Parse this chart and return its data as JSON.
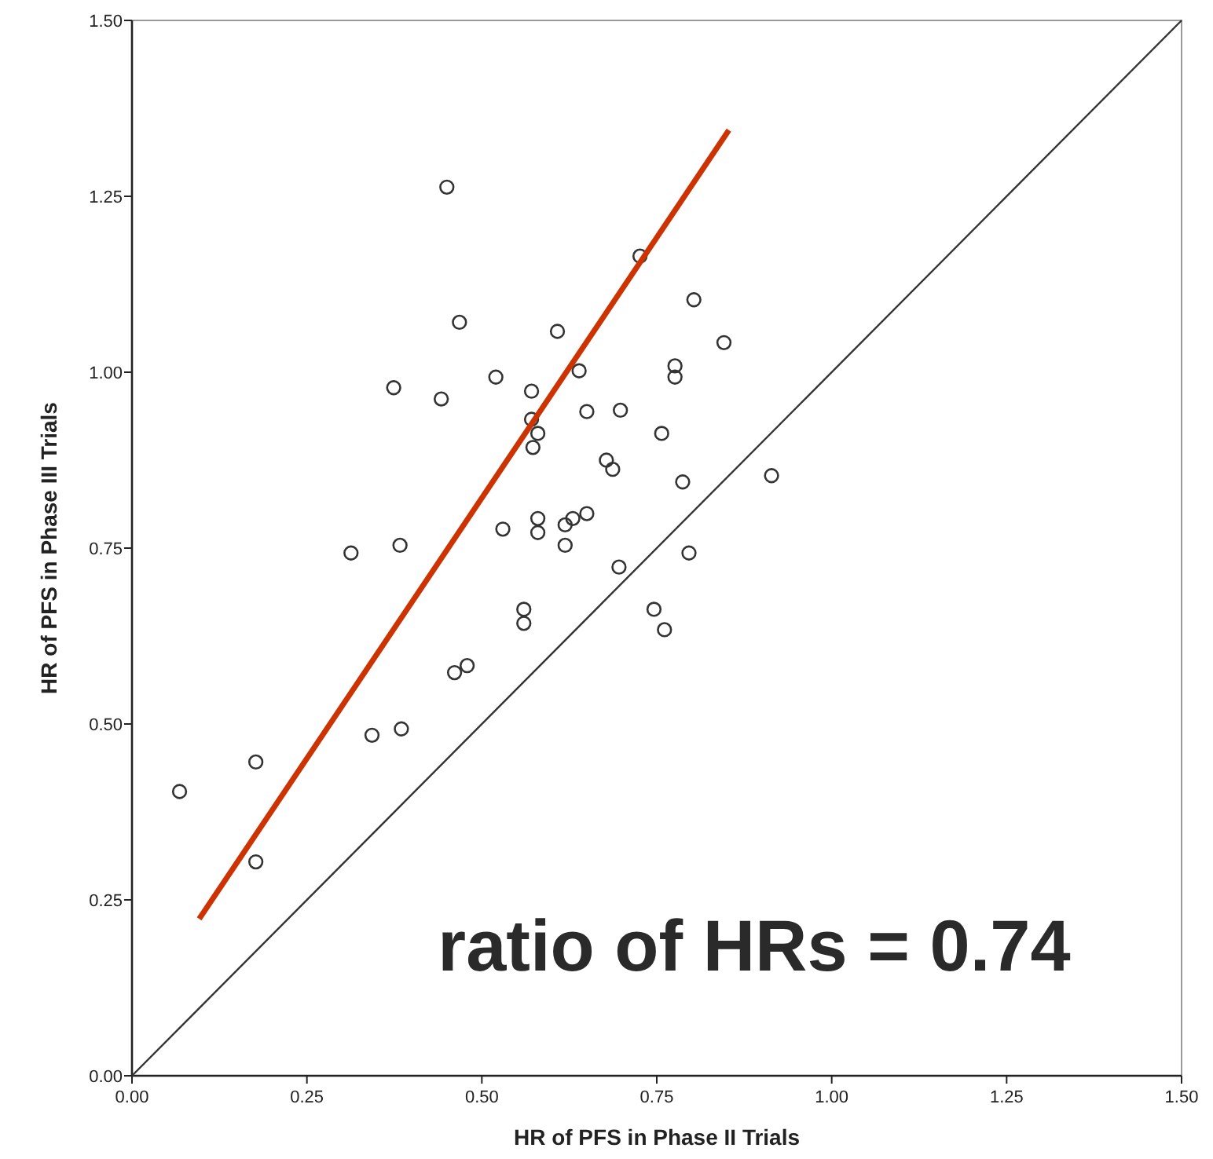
{
  "chart_data": {
    "type": "scatter",
    "xlabel": "HR of PFS in Phase II Trials",
    "ylabel": "HR of PFS in Phase III Trials",
    "xlim": [
      0,
      1.5
    ],
    "ylim": [
      0,
      1.5
    ],
    "xticks": [
      {
        "value": 0,
        "label": "0.00"
      },
      {
        "value": 0.25,
        "label": "0.25"
      },
      {
        "value": 0.5,
        "label": "0.50"
      },
      {
        "value": 0.75,
        "label": "0.75"
      },
      {
        "value": 1,
        "label": "1.00"
      },
      {
        "value": 1.25,
        "label": "1.25"
      },
      {
        "value": 1.5,
        "label": "1.50"
      }
    ],
    "yticks": [
      {
        "value": 0,
        "label": "0.00"
      },
      {
        "value": 0.25,
        "label": "0.25"
      },
      {
        "value": 0.5,
        "label": "0.50"
      },
      {
        "value": 0.75,
        "label": "0.75"
      },
      {
        "value": 1,
        "label": "1.00"
      },
      {
        "value": 1.25,
        "label": "1.25"
      },
      {
        "value": 1.5,
        "label": "1.50"
      }
    ],
    "grid": false,
    "series": [
      {
        "color": "#333333",
        "marker": "circle",
        "x": [
          0.45,
          0.468,
          0.374,
          0.442,
          0.52,
          0.313,
          0.383,
          0.53,
          0.726,
          0.803,
          0.846,
          0.608,
          0.571,
          0.639,
          0.776,
          0.776,
          0.571,
          0.58,
          0.573,
          0.65,
          0.698,
          0.757,
          0.678,
          0.687,
          0.914,
          0.787,
          0.58,
          0.58,
          0.619,
          0.63,
          0.65,
          0.619,
          0.696,
          0.796,
          0.56,
          0.56,
          0.746,
          0.761,
          0.068,
          0.177,
          0.177,
          0.343,
          0.385,
          0.461,
          0.479
        ],
        "values": [
          1.263,
          1.071,
          0.978,
          0.962,
          0.993,
          0.743,
          0.754,
          0.777,
          1.165,
          1.103,
          1.042,
          1.058,
          0.973,
          1.002,
          1.009,
          0.993,
          0.933,
          0.913,
          0.893,
          0.944,
          0.946,
          0.913,
          0.875,
          0.862,
          0.853,
          0.844,
          0.792,
          0.772,
          0.783,
          0.792,
          0.799,
          0.754,
          0.723,
          0.743,
          0.663,
          0.643,
          0.663,
          0.634,
          0.404,
          0.446,
          0.304,
          0.484,
          0.493,
          0.573,
          0.583
        ]
      },
      {
        "type": "line",
        "color": "#cc3300",
        "marker": "none",
        "x": [
          0.096,
          0.853
        ],
        "values": [
          0.223,
          1.344
        ]
      },
      {
        "type": "line",
        "color": "#333333",
        "marker": "none",
        "x": [
          0,
          1.5
        ],
        "values": [
          0,
          1.5
        ]
      }
    ],
    "annotations": [
      "ratio of HRs = 0.74"
    ]
  }
}
